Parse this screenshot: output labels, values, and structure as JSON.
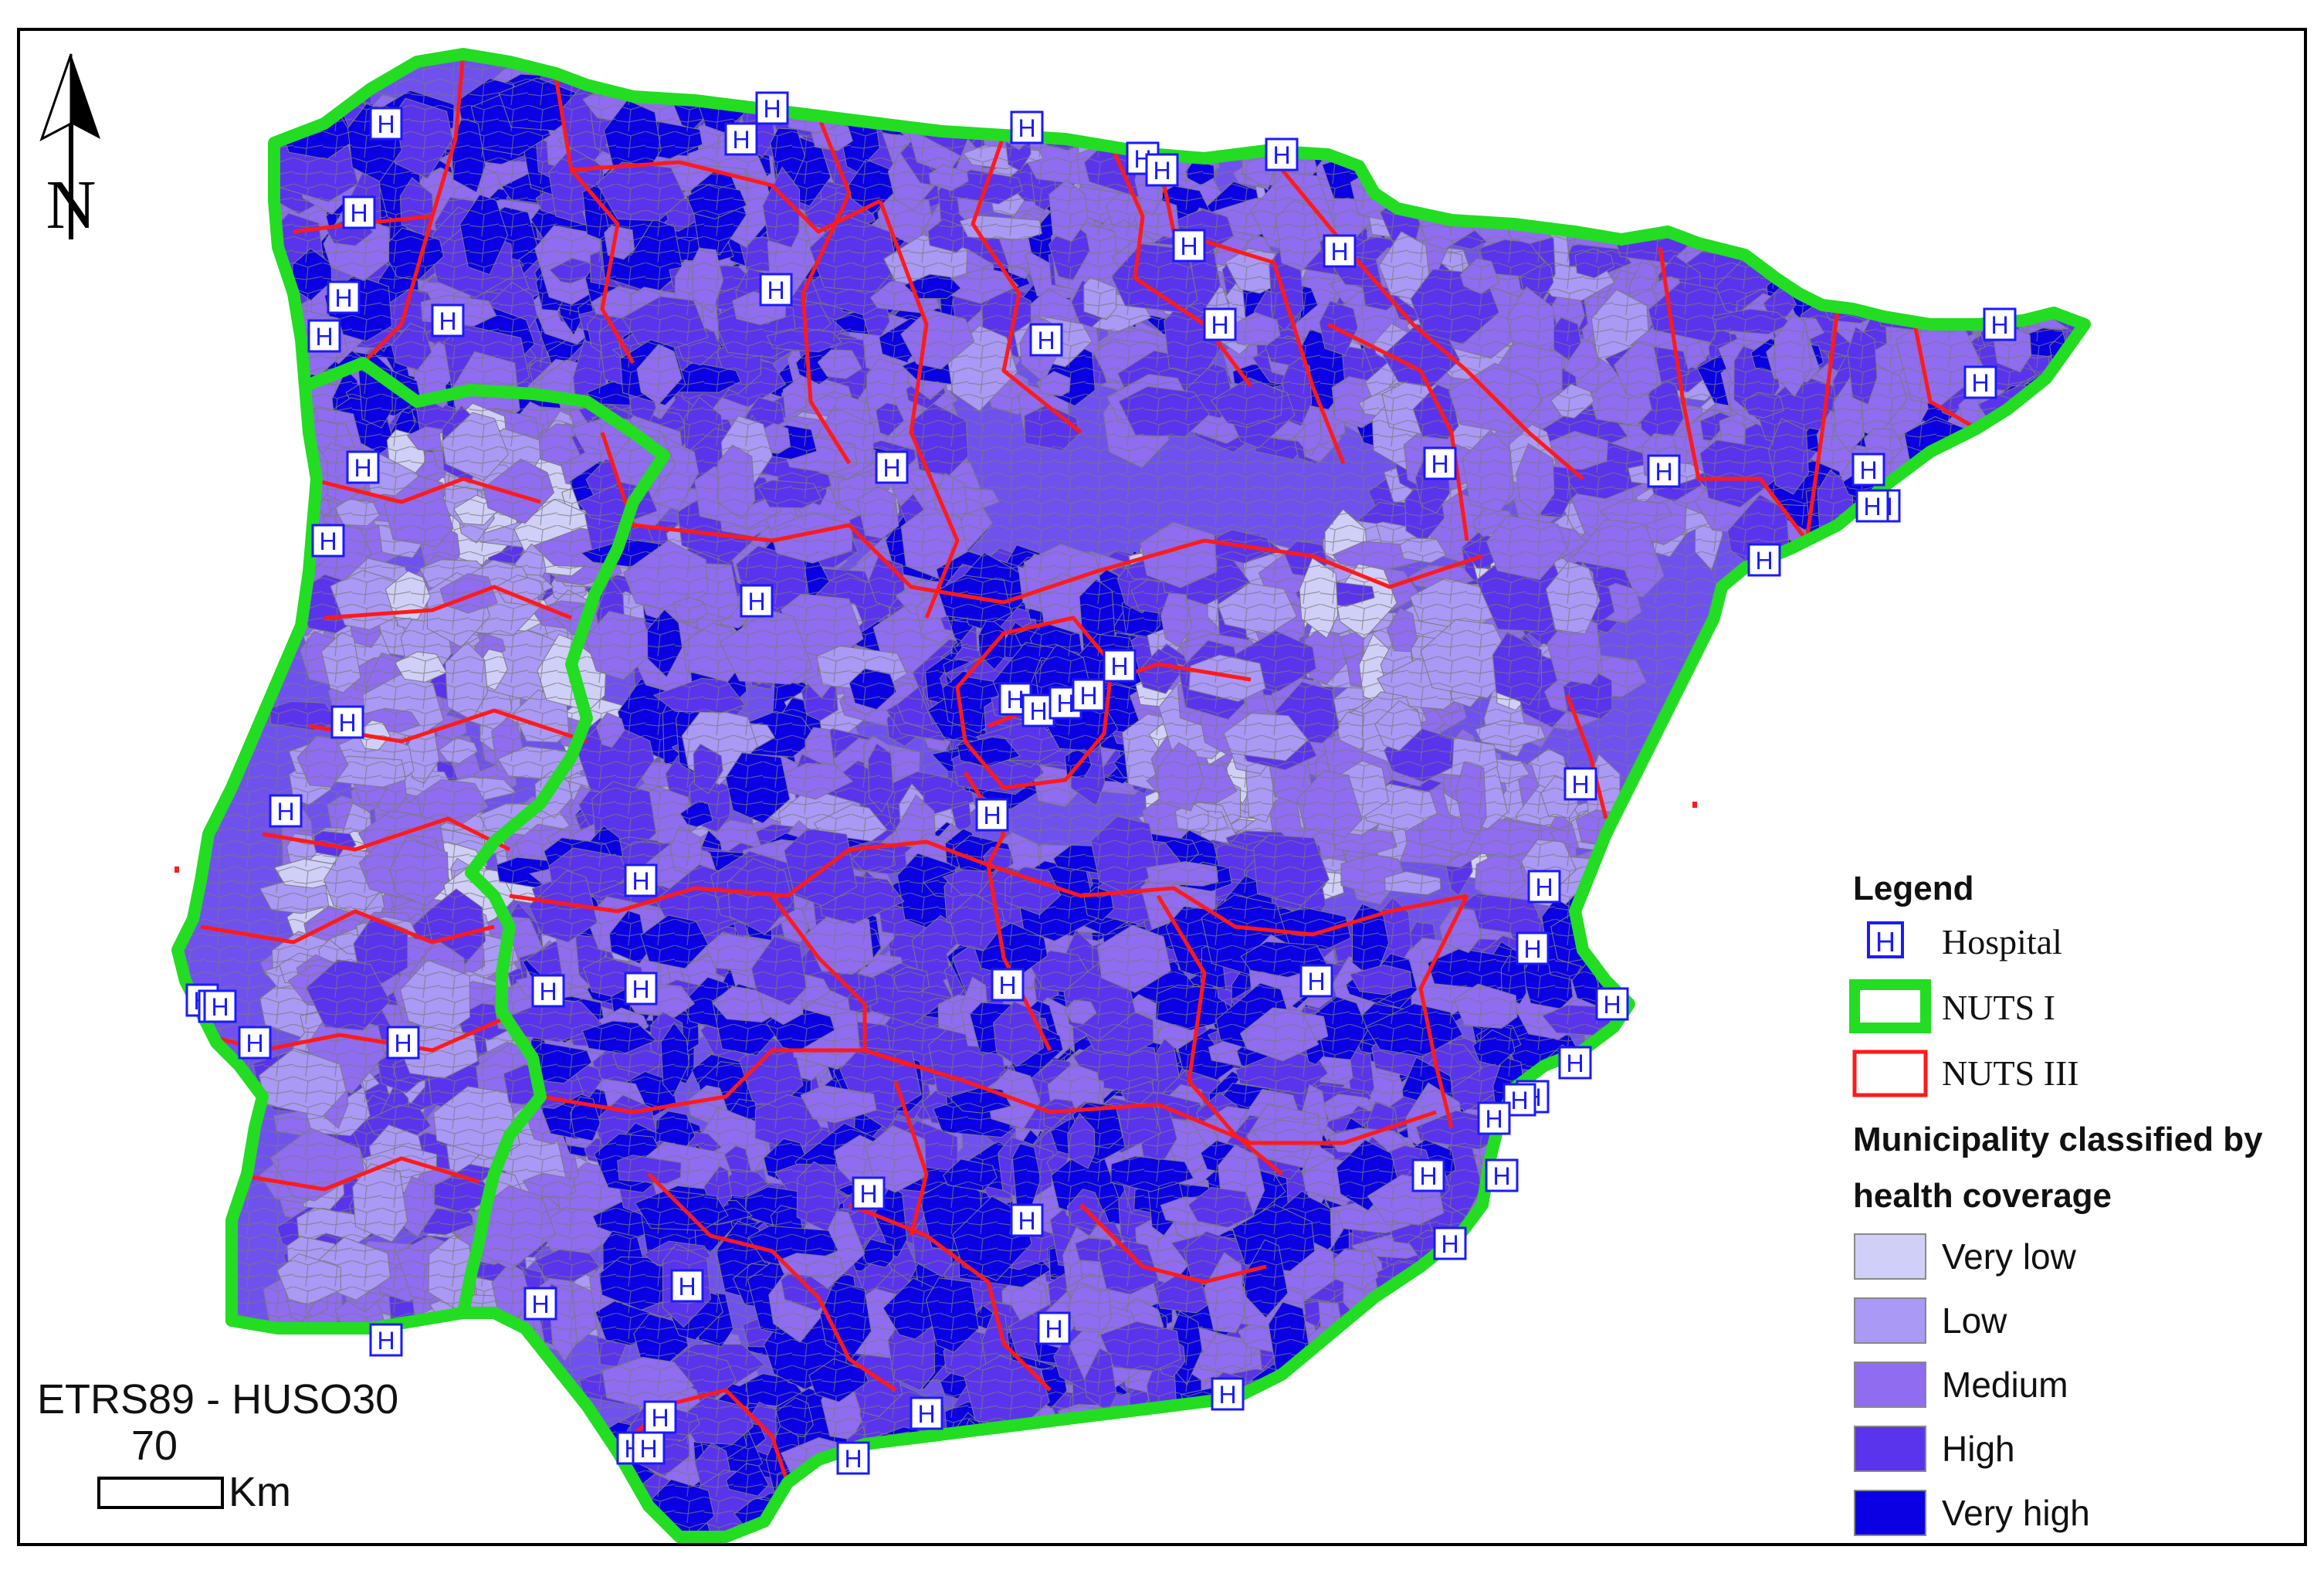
{
  "map": {
    "north_label": "N",
    "crs_label": "ETRS89 - HUSO30",
    "scale_value": "70",
    "scale_unit": "Km"
  },
  "legend": {
    "title": "Legend",
    "hospital_label": "Hospital",
    "hospital_icon_letter": "H",
    "nuts1_label": "NUTS I",
    "nuts3_label": "NUTS III",
    "classification_title_line1": "Municipality classified by",
    "classification_title_line2": "health coverage",
    "classes": [
      {
        "label": "Very low",
        "color": "#cfcff7"
      },
      {
        "label": "Low",
        "color": "#aa99f5"
      },
      {
        "label": "Medium",
        "color": "#8f6cf0"
      },
      {
        "label": "High",
        "color": "#5a34ec"
      },
      {
        "label": "Very high",
        "color": "#0a00e3"
      }
    ]
  },
  "colors": {
    "nuts1": "#22dd22",
    "nuts3": "#ff1a1a",
    "municipal_border": "#7a7a7a",
    "hospital_border": "#1a1aff"
  }
}
